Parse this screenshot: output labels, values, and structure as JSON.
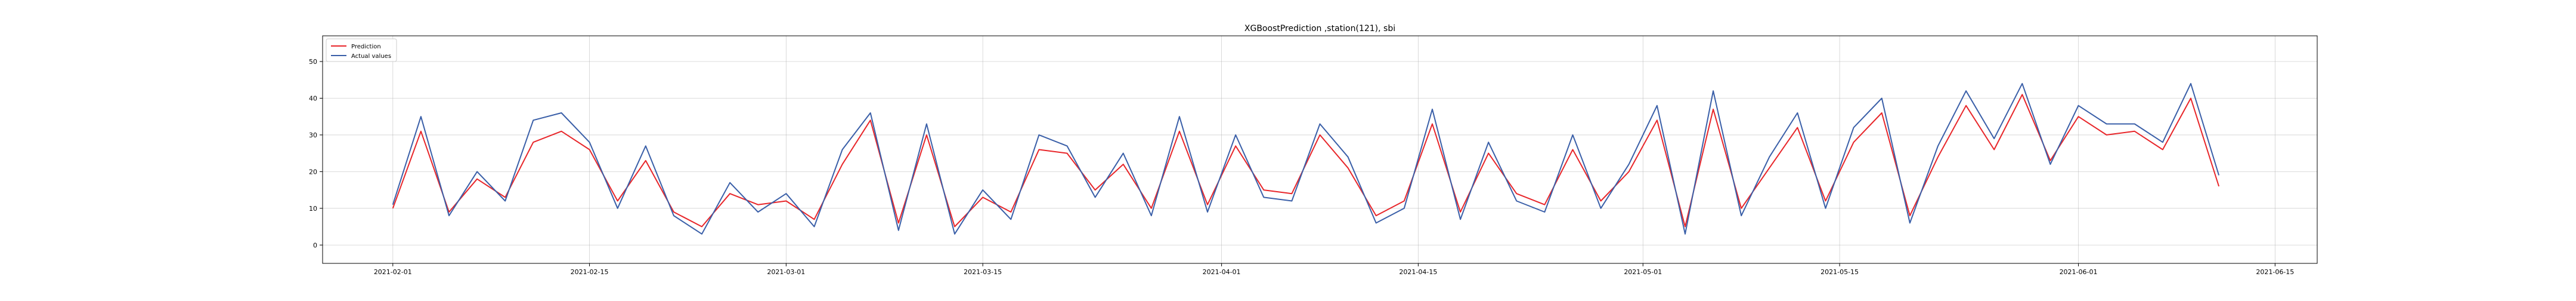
{
  "chart_data": {
    "type": "line",
    "title": "XGBoostPrediction ,station(121), sbi",
    "xlabel": "",
    "ylabel": "",
    "x_range": [
      "2021-01-27",
      "2021-06-18"
    ],
    "ylim": [
      -5,
      57
    ],
    "x_ticks": [
      "2021-02-01",
      "2021-02-15",
      "2021-03-01",
      "2021-03-15",
      "2021-04-01",
      "2021-04-15",
      "2021-05-01",
      "2021-05-15",
      "2021-06-01",
      "2021-06-15"
    ],
    "y_ticks": [
      0,
      10,
      20,
      30,
      40,
      50
    ],
    "grid": true,
    "legend_position": "top-left",
    "colors": {
      "Prediction": "#e8262a",
      "Actual values": "#3a5fa8"
    },
    "series": [
      {
        "name": "Prediction",
        "x": [
          "2021-02-01",
          "2021-02-03",
          "2021-02-05",
          "2021-02-07",
          "2021-02-09",
          "2021-02-11",
          "2021-02-13",
          "2021-02-15",
          "2021-02-17",
          "2021-02-19",
          "2021-02-21",
          "2021-02-23",
          "2021-02-25",
          "2021-02-27",
          "2021-03-01",
          "2021-03-03",
          "2021-03-05",
          "2021-03-07",
          "2021-03-09",
          "2021-03-11",
          "2021-03-13",
          "2021-03-15",
          "2021-03-17",
          "2021-03-19",
          "2021-03-21",
          "2021-03-23",
          "2021-03-25",
          "2021-03-27",
          "2021-03-29",
          "2021-03-31",
          "2021-04-02",
          "2021-04-04",
          "2021-04-06",
          "2021-04-08",
          "2021-04-10",
          "2021-04-12",
          "2021-04-14",
          "2021-04-16",
          "2021-04-18",
          "2021-04-20",
          "2021-04-22",
          "2021-04-24",
          "2021-04-26",
          "2021-04-28",
          "2021-04-30",
          "2021-05-02",
          "2021-05-04",
          "2021-05-06",
          "2021-05-08",
          "2021-05-10",
          "2021-05-12",
          "2021-05-14",
          "2021-05-16",
          "2021-05-18",
          "2021-05-20",
          "2021-05-22",
          "2021-05-24",
          "2021-05-26",
          "2021-05-28",
          "2021-05-30",
          "2021-06-01",
          "2021-06-03",
          "2021-06-05",
          "2021-06-07",
          "2021-06-09",
          "2021-06-11"
        ],
        "values": [
          10,
          31,
          9,
          18,
          13,
          28,
          31,
          26,
          12,
          23,
          9,
          5,
          14,
          11,
          12,
          7,
          22,
          34,
          6,
          30,
          5,
          13,
          9,
          26,
          25,
          15,
          22,
          10,
          31,
          11,
          27,
          15,
          14,
          30,
          21,
          8,
          12,
          33,
          9,
          25,
          14,
          11,
          26,
          12,
          20,
          34,
          5,
          37,
          10,
          21,
          32,
          12,
          28,
          36,
          8,
          24,
          38,
          26,
          41,
          23,
          35,
          30,
          31,
          26,
          40,
          16
        ]
      },
      {
        "name": "Actual values",
        "x": [
          "2021-02-01",
          "2021-02-03",
          "2021-02-05",
          "2021-02-07",
          "2021-02-09",
          "2021-02-11",
          "2021-02-13",
          "2021-02-15",
          "2021-02-17",
          "2021-02-19",
          "2021-02-21",
          "2021-02-23",
          "2021-02-25",
          "2021-02-27",
          "2021-03-01",
          "2021-03-03",
          "2021-03-05",
          "2021-03-07",
          "2021-03-09",
          "2021-03-11",
          "2021-03-13",
          "2021-03-15",
          "2021-03-17",
          "2021-03-19",
          "2021-03-21",
          "2021-03-23",
          "2021-03-25",
          "2021-03-27",
          "2021-03-29",
          "2021-03-31",
          "2021-04-02",
          "2021-04-04",
          "2021-04-06",
          "2021-04-08",
          "2021-04-10",
          "2021-04-12",
          "2021-04-14",
          "2021-04-16",
          "2021-04-18",
          "2021-04-20",
          "2021-04-22",
          "2021-04-24",
          "2021-04-26",
          "2021-04-28",
          "2021-04-30",
          "2021-05-02",
          "2021-05-04",
          "2021-05-06",
          "2021-05-08",
          "2021-05-10",
          "2021-05-12",
          "2021-05-14",
          "2021-05-16",
          "2021-05-18",
          "2021-05-20",
          "2021-05-22",
          "2021-05-24",
          "2021-05-26",
          "2021-05-28",
          "2021-05-30",
          "2021-06-01",
          "2021-06-03",
          "2021-06-05",
          "2021-06-07",
          "2021-06-09",
          "2021-06-11"
        ],
        "values": [
          11,
          35,
          8,
          20,
          12,
          34,
          36,
          28,
          10,
          27,
          8,
          3,
          17,
          9,
          14,
          5,
          26,
          36,
          4,
          33,
          3,
          15,
          7,
          30,
          27,
          13,
          25,
          8,
          35,
          9,
          30,
          13,
          12,
          33,
          24,
          6,
          10,
          37,
          7,
          28,
          12,
          9,
          30,
          10,
          22,
          38,
          3,
          42,
          8,
          24,
          36,
          10,
          32,
          40,
          6,
          27,
          42,
          29,
          44,
          22,
          38,
          33,
          33,
          28,
          44,
          19
        ]
      }
    ]
  }
}
